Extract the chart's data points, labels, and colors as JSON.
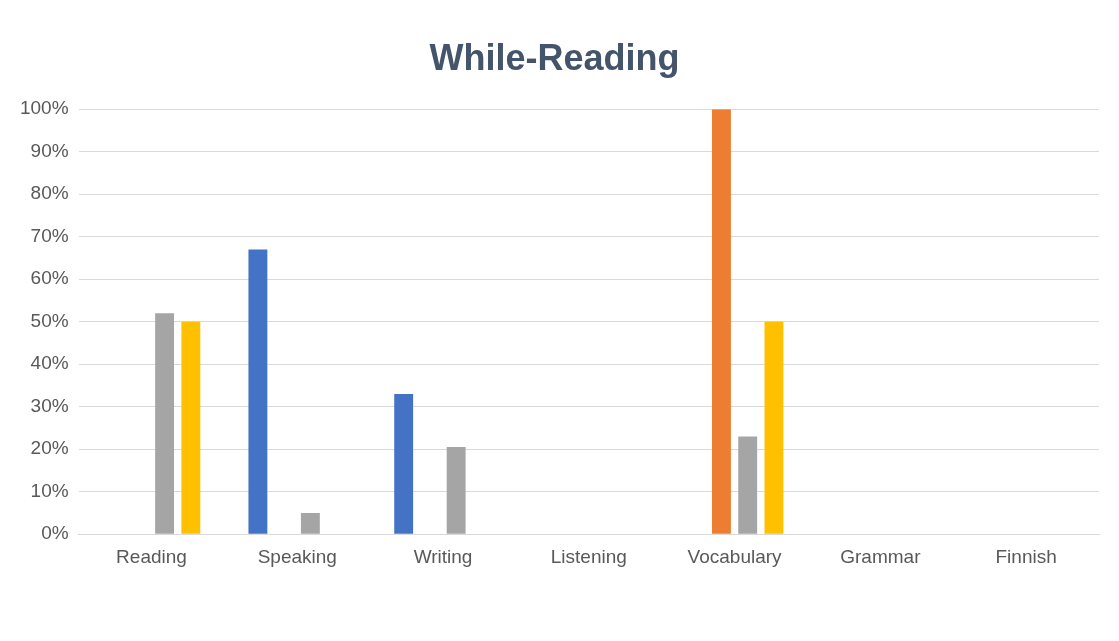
{
  "chart_data": {
    "type": "bar",
    "title": "While-Reading",
    "categories": [
      "Reading",
      "Speaking",
      "Writing",
      "Listening",
      "Vocabulary",
      "Grammar",
      "Finnish"
    ],
    "series": [
      {
        "color": "#4472c4",
        "values": [
          0,
          67,
          33,
          0,
          0,
          0,
          0
        ]
      },
      {
        "color": "#ed7d31",
        "values": [
          0,
          0,
          0,
          0,
          100,
          0,
          0
        ]
      },
      {
        "color": "#a5a5a5",
        "values": [
          52,
          5,
          20.5,
          0,
          23,
          0,
          0
        ]
      },
      {
        "color": "#ffc000",
        "values": [
          50,
          0,
          0,
          0,
          50,
          0,
          0
        ]
      }
    ],
    "ylim": [
      0,
      100
    ],
    "yticks": [
      {
        "value": 0,
        "label": "0%"
      },
      {
        "value": 10,
        "label": "10%"
      },
      {
        "value": 20,
        "label": "20%"
      },
      {
        "value": 30,
        "label": "30%"
      },
      {
        "value": 40,
        "label": "40%"
      },
      {
        "value": 50,
        "label": "50%"
      },
      {
        "value": 60,
        "label": "60%"
      },
      {
        "value": 70,
        "label": "70%"
      },
      {
        "value": 80,
        "label": "80%"
      },
      {
        "value": 90,
        "label": "90%"
      },
      {
        "value": 100,
        "label": "100%"
      }
    ],
    "grid": "y"
  }
}
